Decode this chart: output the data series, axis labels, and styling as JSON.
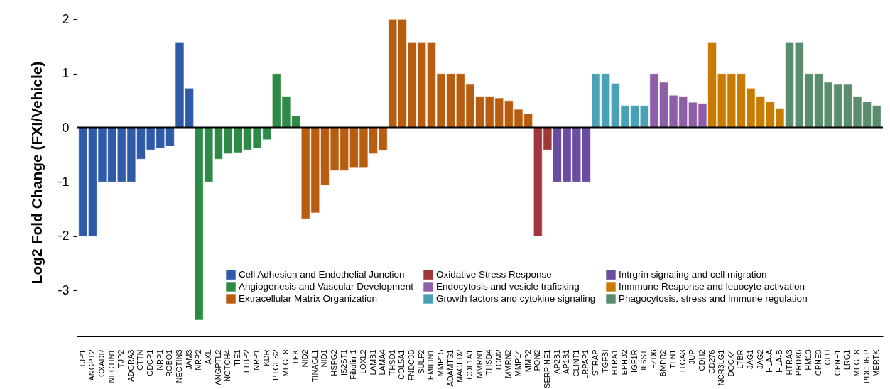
{
  "chart_data": {
    "type": "bar",
    "ylabel": "Log2 Fold Change (FXI/Vehicle)",
    "categories": [
      "TJP1",
      "ANGPT2",
      "CXADR",
      "NECTIN1",
      "TJP2",
      "ADGRA3",
      "CTTN",
      "CDCP1",
      "NRP1",
      "ROBO1",
      "NECTIN3",
      "JAM3",
      "NRP2",
      "AXL",
      "ANGPTL2",
      "NOTCH4",
      "TIE1",
      "LTBP2",
      "NRP1",
      "KDR",
      "PTGES2",
      "MFGE8",
      "TEK",
      "NID2",
      "TINAGL1",
      "NID1",
      "HSPG2",
      "HS2ST1",
      "Fibulin-1",
      "LOXL2",
      "LAMB1",
      "LAMA4",
      "THSD1",
      "COL5A1",
      "FNDC3B",
      "SULF2",
      "EMILIN1",
      "MMP15",
      "ADAMTS1",
      "MAGED2",
      "COL1A1",
      "MMRN1",
      "THSD4",
      "TGM2",
      "MMRN2",
      "MMP14",
      "MMP2",
      "PON2",
      "SERPINE1",
      "AP2B1",
      "AP1B1",
      "CLINT1",
      "LRPAP1",
      "STRAP",
      "TGFBI",
      "HTRA1",
      "EPHB2",
      "IGF1R",
      "IL6ST",
      "FZD6",
      "BMPR2",
      "TLN1",
      "ITGA3",
      "JUP",
      "CDH2",
      "CD276",
      "NCR3LG1",
      "DOCK4",
      "LTBR",
      "JAG1",
      "JAG2",
      "HLA-A",
      "HLA-B",
      "HTRA3",
      "PRDX6",
      "HM13",
      "CPNE3",
      "CLU",
      "CPNE1",
      "LRG1",
      "MFGE8",
      "PDCD6IP",
      "MERTK"
    ],
    "series": [
      {
        "name": "Cell Adhesion and Endothelial Junction",
        "color": "#2e5aa8",
        "values": [
          -2,
          -2,
          -1,
          -1,
          -1,
          -1,
          -0.58,
          -0.41,
          -0.38,
          -0.34,
          1.58,
          0.73,
          null,
          null,
          null,
          null,
          null,
          null,
          null,
          null,
          null,
          null,
          null,
          null,
          null,
          null,
          null,
          null,
          null,
          null,
          null,
          null,
          null,
          null,
          null,
          null,
          null,
          null,
          null,
          null,
          null,
          null,
          null,
          null,
          null,
          null,
          null,
          null,
          null,
          null,
          null,
          null,
          null,
          null,
          null,
          null,
          null,
          null,
          null,
          null,
          null,
          null,
          null,
          null,
          null,
          null,
          null,
          null,
          null,
          null,
          null,
          null,
          null,
          null,
          null,
          null,
          null,
          null,
          null,
          null,
          null,
          null,
          null
        ]
      },
      {
        "name": "Angiogenesis and Vascular Development",
        "color": "#2e8b47",
        "values": [
          null,
          null,
          null,
          null,
          null,
          null,
          null,
          null,
          null,
          null,
          null,
          null,
          -3.55,
          -1,
          -0.58,
          -0.48,
          -0.46,
          -0.41,
          -0.38,
          -0.22,
          1,
          0.58,
          0.22,
          null,
          null,
          null,
          null,
          null,
          null,
          null,
          null,
          null,
          null,
          null,
          null,
          null,
          null,
          null,
          null,
          null,
          null,
          null,
          null,
          null,
          null,
          null,
          null,
          null,
          null,
          null,
          null,
          null,
          null,
          null,
          null,
          null,
          null,
          null,
          null,
          null,
          null,
          null,
          null,
          null,
          null,
          null,
          null,
          null,
          null,
          null,
          null,
          null,
          null,
          null,
          null,
          null,
          null,
          null,
          null,
          null,
          null,
          null,
          null
        ]
      },
      {
        "name": "Extracellular Matrix Organization",
        "color": "#b85c10",
        "values": [
          null,
          null,
          null,
          null,
          null,
          null,
          null,
          null,
          null,
          null,
          null,
          null,
          null,
          null,
          null,
          null,
          null,
          null,
          null,
          null,
          null,
          null,
          null,
          -1.68,
          -1.57,
          -1.06,
          -0.79,
          -0.79,
          -0.73,
          -0.73,
          -0.48,
          -0.42,
          2,
          2,
          1.58,
          1.58,
          1.58,
          1,
          1,
          1,
          0.8,
          0.58,
          0.58,
          0.55,
          0.5,
          0.34,
          0.26,
          null,
          null,
          null,
          null,
          null,
          null,
          null,
          null,
          null,
          null,
          null,
          null,
          null,
          null,
          null,
          null,
          null,
          null,
          null,
          null,
          null,
          null,
          null,
          null,
          null,
          null,
          null,
          null,
          null,
          null,
          null,
          null,
          null,
          null,
          null,
          null
        ]
      },
      {
        "name": "Oxidative Stress Response",
        "color": "#a0373a",
        "values": [
          null,
          null,
          null,
          null,
          null,
          null,
          null,
          null,
          null,
          null,
          null,
          null,
          null,
          null,
          null,
          null,
          null,
          null,
          null,
          null,
          null,
          null,
          null,
          null,
          null,
          null,
          null,
          null,
          null,
          null,
          null,
          null,
          null,
          null,
          null,
          null,
          null,
          null,
          null,
          null,
          null,
          null,
          null,
          null,
          null,
          null,
          null,
          -2,
          -0.41,
          null,
          null,
          null,
          null,
          null,
          null,
          null,
          null,
          null,
          null,
          null,
          null,
          null,
          null,
          null,
          null,
          null,
          null,
          null,
          null,
          null,
          null,
          null,
          null,
          null,
          null,
          null,
          null,
          null,
          null,
          null,
          null,
          null,
          null
        ]
      },
      {
        "name": "Endocytosis and vesicle traficking",
        "color": "#8e5fa8",
        "values": [
          null,
          null,
          null,
          null,
          null,
          null,
          null,
          null,
          null,
          null,
          null,
          null,
          null,
          null,
          null,
          null,
          null,
          null,
          null,
          null,
          null,
          null,
          null,
          null,
          null,
          null,
          null,
          null,
          null,
          null,
          null,
          null,
          null,
          null,
          null,
          null,
          null,
          null,
          null,
          null,
          null,
          null,
          null,
          null,
          null,
          null,
          null,
          null,
          null,
          null,
          null,
          null,
          null,
          null,
          null,
          null,
          null,
          null,
          null,
          1,
          0.84,
          0.6,
          0.58,
          0.47,
          0.45,
          null,
          null,
          null,
          null,
          null,
          null,
          null,
          null,
          null,
          null,
          null,
          null,
          null,
          null,
          null,
          null,
          null,
          null
        ]
      },
      {
        "name": "Growth factors and cytokine signaling",
        "color": "#4aa0b5",
        "values": [
          null,
          null,
          null,
          null,
          null,
          null,
          null,
          null,
          null,
          null,
          null,
          null,
          null,
          null,
          null,
          null,
          null,
          null,
          null,
          null,
          null,
          null,
          null,
          null,
          null,
          null,
          null,
          null,
          null,
          null,
          null,
          null,
          null,
          null,
          null,
          null,
          null,
          null,
          null,
          null,
          null,
          null,
          null,
          null,
          null,
          null,
          null,
          null,
          null,
          null,
          null,
          null,
          null,
          1,
          1,
          0.82,
          0.41,
          0.41,
          0.41,
          null,
          null,
          null,
          null,
          null,
          null,
          null,
          null,
          null,
          null,
          null,
          null,
          null,
          null,
          null,
          null,
          null,
          null,
          null,
          null,
          null,
          null,
          null,
          null
        ]
      },
      {
        "name": "Intrgrin signaling and cell migration",
        "color": "#6a4ca0",
        "values": [
          null,
          null,
          null,
          null,
          null,
          null,
          null,
          null,
          null,
          null,
          null,
          null,
          null,
          null,
          null,
          null,
          null,
          null,
          null,
          null,
          null,
          null,
          null,
          null,
          null,
          null,
          null,
          null,
          null,
          null,
          null,
          null,
          null,
          null,
          null,
          null,
          null,
          null,
          null,
          null,
          null,
          null,
          null,
          null,
          null,
          null,
          null,
          null,
          null,
          -1,
          -1,
          -1,
          -1,
          null,
          null,
          null,
          null,
          null,
          null,
          null,
          null,
          null,
          null,
          null,
          null,
          null,
          null,
          null,
          null,
          null,
          null,
          null,
          null,
          null,
          null,
          null,
          null,
          null,
          null,
          null,
          null,
          null,
          null
        ]
      },
      {
        "name": "Inmmune Response and leuocyte activation",
        "color": "#c97a00",
        "values": [
          null,
          null,
          null,
          null,
          null,
          null,
          null,
          null,
          null,
          null,
          null,
          null,
          null,
          null,
          null,
          null,
          null,
          null,
          null,
          null,
          null,
          null,
          null,
          null,
          null,
          null,
          null,
          null,
          null,
          null,
          null,
          null,
          null,
          null,
          null,
          null,
          null,
          null,
          null,
          null,
          null,
          null,
          null,
          null,
          null,
          null,
          null,
          null,
          null,
          null,
          null,
          null,
          null,
          null,
          null,
          null,
          null,
          null,
          null,
          null,
          null,
          null,
          null,
          null,
          null,
          1.58,
          1,
          1,
          1,
          0.73,
          0.58,
          0.48,
          0.36,
          null,
          null,
          null,
          null,
          null,
          null,
          null,
          null,
          null,
          null
        ]
      },
      {
        "name": "Phagocytosis, stress and Immune regulation",
        "color": "#5a8c6e",
        "values": [
          null,
          null,
          null,
          null,
          null,
          null,
          null,
          null,
          null,
          null,
          null,
          null,
          null,
          null,
          null,
          null,
          null,
          null,
          null,
          null,
          null,
          null,
          null,
          null,
          null,
          null,
          null,
          null,
          null,
          null,
          null,
          null,
          null,
          null,
          null,
          null,
          null,
          null,
          null,
          null,
          null,
          null,
          null,
          null,
          null,
          null,
          null,
          null,
          null,
          null,
          null,
          null,
          null,
          null,
          null,
          null,
          null,
          null,
          null,
          null,
          null,
          null,
          null,
          null,
          null,
          null,
          null,
          null,
          null,
          null,
          null,
          null,
          null,
          1.58,
          1.58,
          1,
          1,
          0.84,
          0.8,
          0.8,
          0.58,
          0.48,
          0.41
        ]
      }
    ],
    "ylim": [
      -3.85,
      2.2
    ],
    "yticks": [
      -3,
      -2,
      -1,
      0,
      1,
      2
    ],
    "grid": false,
    "legend": "bottom right",
    "ref_lines": [
      {
        "axis": "y",
        "value": 0,
        "color": "#000000"
      }
    ]
  }
}
